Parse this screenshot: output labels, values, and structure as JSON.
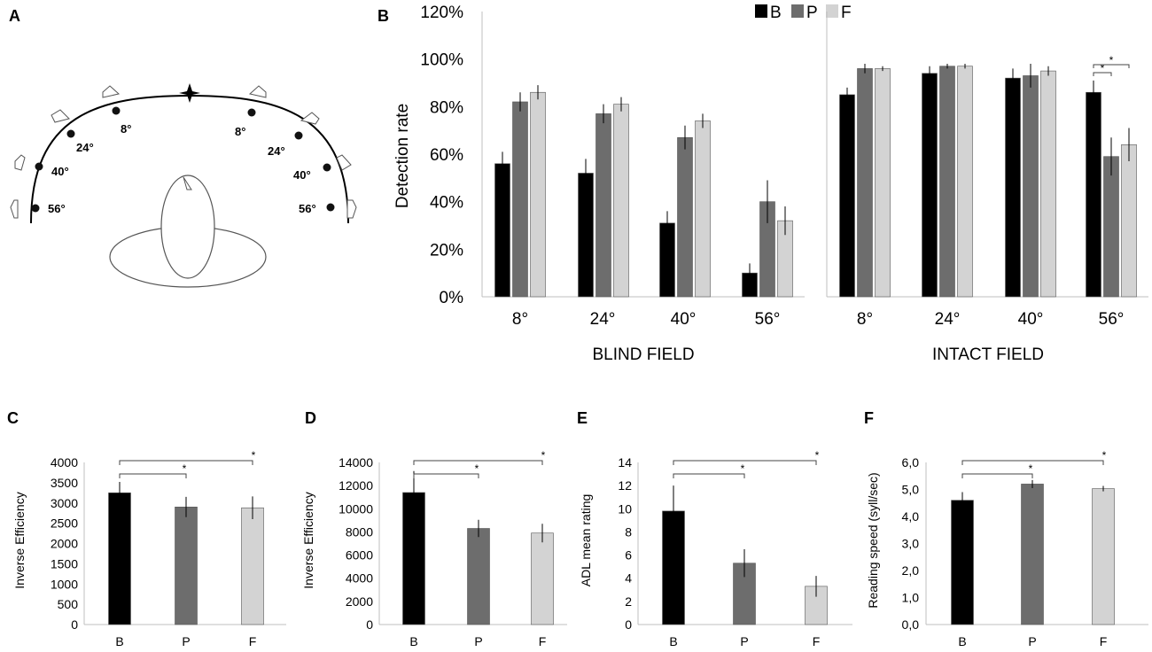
{
  "panel_labels": {
    "a": "A",
    "b": "B",
    "c": "C",
    "d": "D",
    "e": "E",
    "f": "F"
  },
  "colors": {
    "B": "#000000",
    "P": "#6d6d6d",
    "F": "#d3d3d3",
    "axis": "#bfbfbf",
    "ink": "#000000"
  },
  "legend": [
    {
      "key": "B",
      "label": "B"
    },
    {
      "key": "P",
      "label": "P"
    },
    {
      "key": "F",
      "label": "F"
    }
  ],
  "diagram": {
    "angles_left": [
      "56°",
      "40°",
      "24°",
      "8°"
    ],
    "angles_right": [
      "8°",
      "24°",
      "40°",
      "56°"
    ]
  },
  "chart_data": [
    {
      "id": "B-blind",
      "type": "bar",
      "title": "BLIND FIELD",
      "ylabel": "Detection rate",
      "ylim": [
        0,
        120
      ],
      "yticks": [
        "0%",
        "20%",
        "40%",
        "60%",
        "80%",
        "100%",
        "120%"
      ],
      "categories": [
        "8°",
        "24°",
        "40°",
        "56°"
      ],
      "series": [
        {
          "name": "B",
          "values": [
            56,
            52,
            31,
            10
          ],
          "errors": [
            5,
            6,
            5,
            4
          ]
        },
        {
          "name": "P",
          "values": [
            82,
            77,
            67,
            40
          ],
          "errors": [
            4,
            4,
            5,
            9
          ]
        },
        {
          "name": "F",
          "values": [
            86,
            81,
            74,
            32
          ],
          "errors": [
            3,
            3,
            3,
            6
          ]
        }
      ]
    },
    {
      "id": "B-intact",
      "type": "bar",
      "title": "INTACT FIELD",
      "ylim": [
        0,
        120
      ],
      "categories": [
        "8°",
        "24°",
        "40°",
        "56°"
      ],
      "series": [
        {
          "name": "B",
          "values": [
            85,
            94,
            92,
            86
          ],
          "errors": [
            3,
            3,
            4,
            5
          ]
        },
        {
          "name": "P",
          "values": [
            96,
            97,
            93,
            59
          ],
          "errors": [
            2,
            1,
            5,
            8
          ]
        },
        {
          "name": "F",
          "values": [
            96,
            97,
            95,
            64
          ],
          "errors": [
            1,
            1,
            2,
            7
          ]
        }
      ],
      "significance": [
        {
          "category": "56°",
          "from": "B",
          "to": "P",
          "label": "*"
        },
        {
          "category": "56°",
          "from": "B",
          "to": "F",
          "label": "*"
        }
      ]
    },
    {
      "id": "C",
      "type": "bar",
      "ylabel": "Inverse Efficiency",
      "ylim": [
        0,
        4000
      ],
      "yticks": [
        "0",
        "500",
        "1000",
        "1500",
        "2000",
        "2500",
        "3000",
        "3500",
        "4000"
      ],
      "categories": [
        "B",
        "P",
        "F"
      ],
      "values": [
        3250,
        2900,
        2880
      ],
      "errors": [
        270,
        250,
        280
      ],
      "significance": [
        {
          "from": "B",
          "to": "P",
          "label": "*"
        },
        {
          "from": "B",
          "to": "F",
          "label": "*"
        }
      ]
    },
    {
      "id": "D",
      "type": "bar",
      "ylabel": "Inverse Efficiency",
      "ylim": [
        0,
        14000
      ],
      "yticks": [
        "0",
        "2000",
        "4000",
        "6000",
        "8000",
        "10000",
        "12000",
        "14000"
      ],
      "categories": [
        "B",
        "P",
        "F"
      ],
      "values": [
        11400,
        8300,
        7900
      ],
      "errors": [
        1850,
        750,
        800
      ],
      "significance": [
        {
          "from": "B",
          "to": "P",
          "label": "*"
        },
        {
          "from": "B",
          "to": "F",
          "label": "*"
        }
      ]
    },
    {
      "id": "E",
      "type": "bar",
      "ylabel": "ADL mean rating",
      "ylim": [
        0,
        14
      ],
      "yticks": [
        "0",
        "2",
        "4",
        "6",
        "8",
        "10",
        "12",
        "14"
      ],
      "categories": [
        "B",
        "P",
        "F"
      ],
      "values": [
        9.8,
        5.3,
        3.3
      ],
      "errors": [
        2.2,
        1.2,
        0.9
      ],
      "significance": [
        {
          "from": "B",
          "to": "P",
          "label": "*"
        },
        {
          "from": "B",
          "to": "F",
          "label": "*"
        }
      ]
    },
    {
      "id": "F",
      "type": "bar",
      "ylabel": "Reading speed (syll/sec)",
      "ylim": [
        0,
        6
      ],
      "yticks": [
        "0,0",
        "1,0",
        "2,0",
        "3,0",
        "4,0",
        "5,0",
        "6,0"
      ],
      "categories": [
        "B",
        "P",
        "F"
      ],
      "values": [
        4.6,
        5.2,
        5.03
      ],
      "errors": [
        0.3,
        0.15,
        0.1
      ],
      "significance": [
        {
          "from": "B",
          "to": "P",
          "label": "*"
        },
        {
          "from": "B",
          "to": "F",
          "label": "*"
        }
      ]
    }
  ]
}
